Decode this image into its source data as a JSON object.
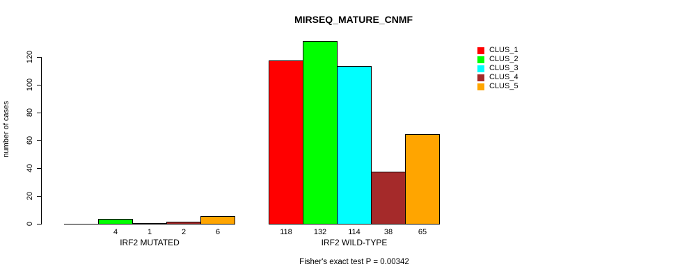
{
  "chart_data": {
    "type": "bar",
    "title": "MIRSEQ_MATURE_CNMF",
    "xlabel": "",
    "ylabel": "number of cases",
    "categories": [
      "IRF2 MUTATED",
      "IRF2 WILD-TYPE"
    ],
    "series": [
      {
        "name": "CLUS_1",
        "color": "#FF0000",
        "values": [
          0,
          118
        ]
      },
      {
        "name": "CLUS_2",
        "color": "#00FF00",
        "values": [
          4,
          132
        ]
      },
      {
        "name": "CLUS_3",
        "color": "#00FFFF",
        "values": [
          1,
          114
        ]
      },
      {
        "name": "CLUS_4",
        "color": "#A52A2A",
        "values": [
          2,
          38
        ]
      },
      {
        "name": "CLUS_5",
        "color": "#FFA500",
        "values": [
          6,
          65
        ]
      }
    ],
    "yticks": [
      0,
      20,
      40,
      60,
      80,
      100,
      120
    ],
    "ylim": [
      0,
      132
    ],
    "grid": false,
    "bar_value_labels_shown": true,
    "zero_value_labels_hidden": true,
    "legend_position": "top-right",
    "legend": [
      "CLUS_1",
      "CLUS_2",
      "CLUS_3",
      "CLUS_4",
      "CLUS_5"
    ],
    "annotation": "Fisher's exact test P = 0.00342",
    "colors": {
      "bar_border": "#000000",
      "text": "#000000",
      "background": "#FFFFFF"
    }
  }
}
